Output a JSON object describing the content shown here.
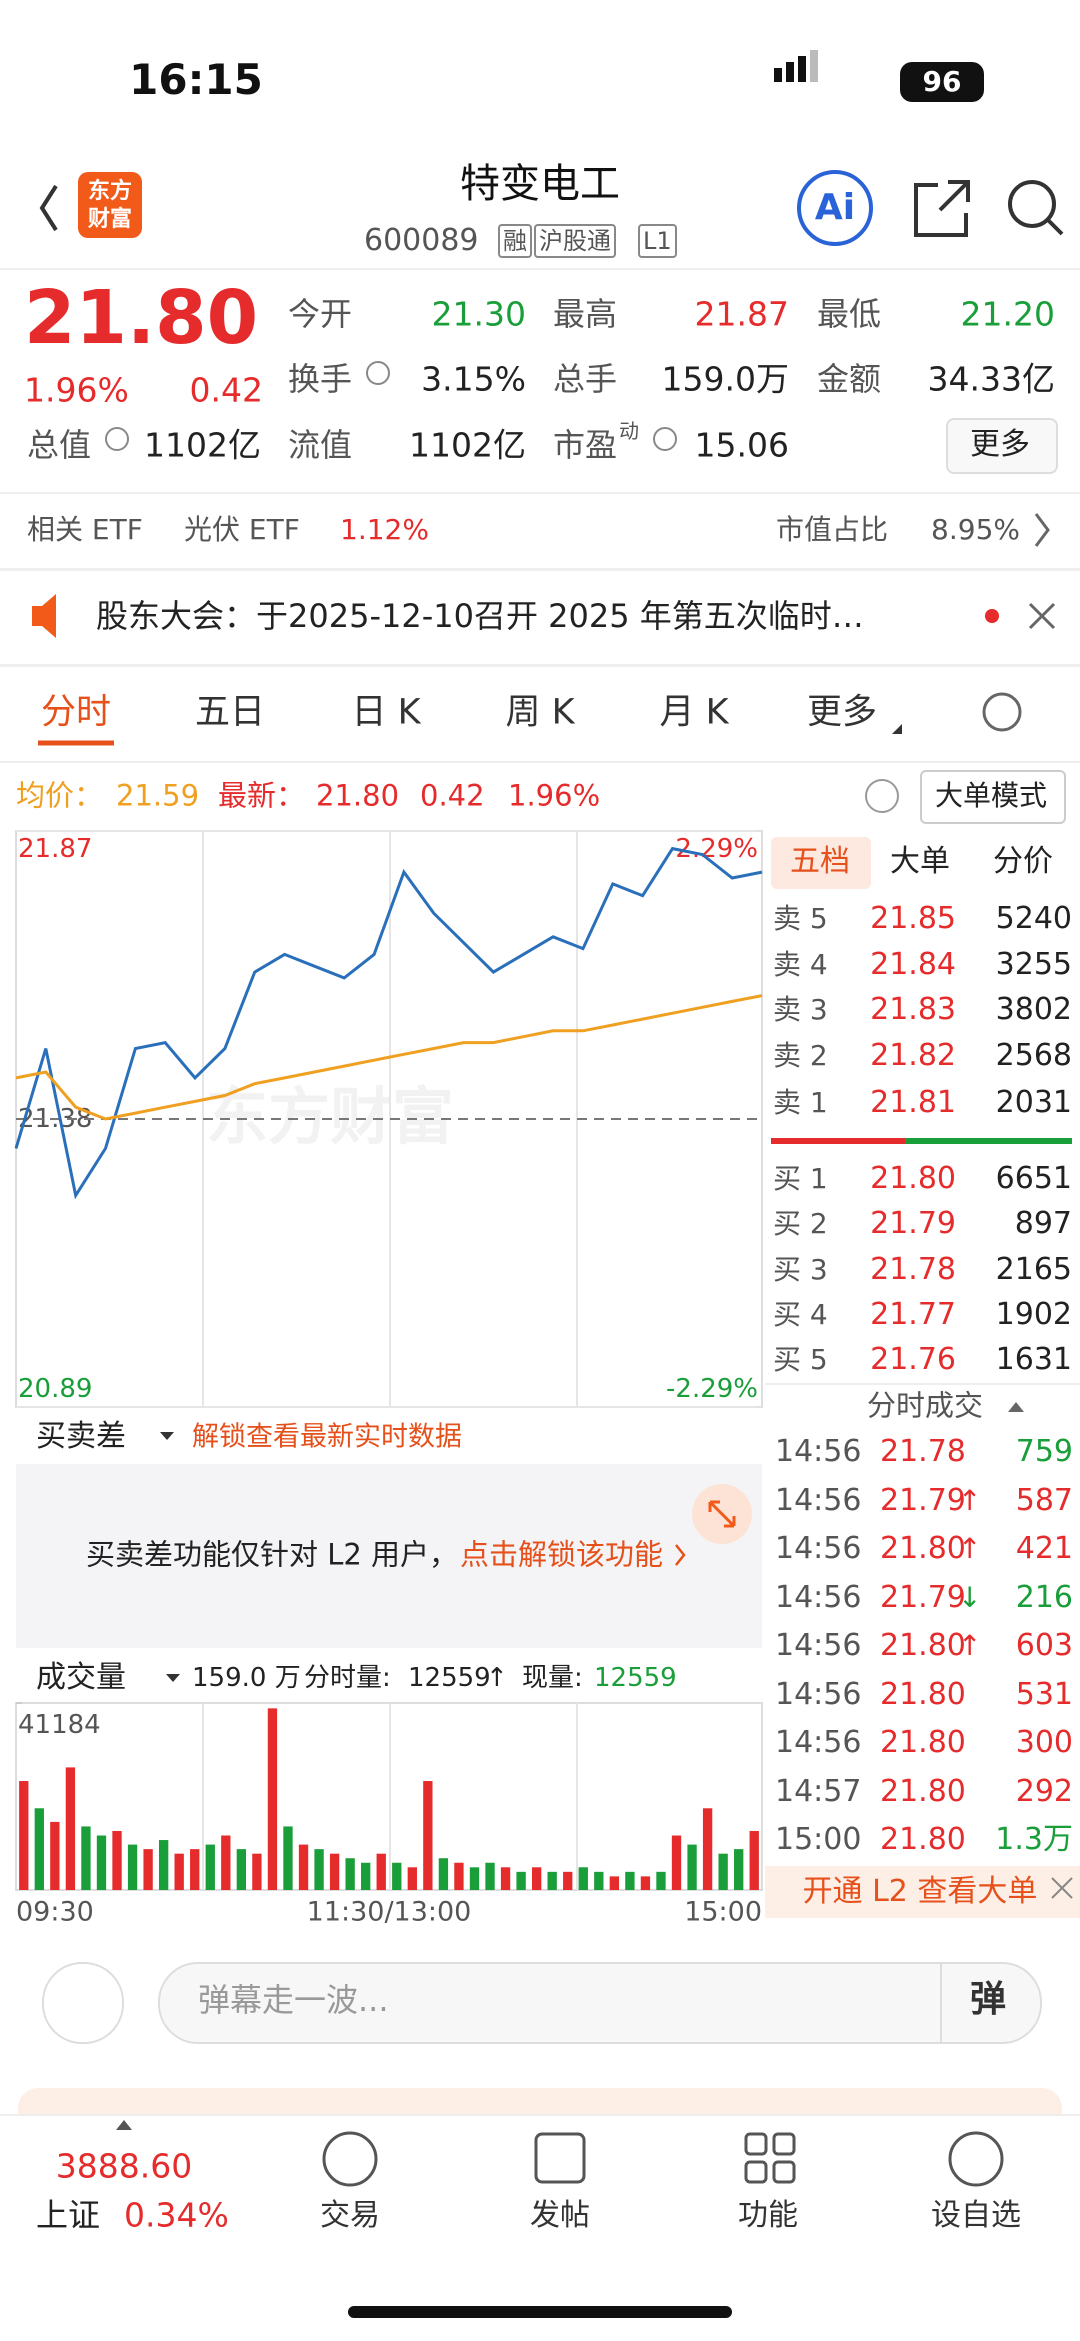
{
  "status": {
    "time": "16:15",
    "battery": "96"
  },
  "header": {
    "logo_top": "东方",
    "logo_bottom": "财富",
    "title": "特变电工",
    "code": "600089",
    "badges": [
      "融",
      "沪股通",
      "L1"
    ],
    "ai": "Ai"
  },
  "quote": {
    "price": "21.80",
    "change_pct": "1.96%",
    "change": "0.42",
    "fields": [
      {
        "label": "今开",
        "value": "21.30"
      },
      {
        "label": "最高",
        "value": "21.87"
      },
      {
        "label": "最低",
        "value": "21.20"
      },
      {
        "label": "换手",
        "value": "3.15%"
      },
      {
        "label": "总手",
        "value": "159.0万"
      },
      {
        "label": "金额",
        "value": "34.33亿"
      },
      {
        "label": "总值",
        "value": "1102亿"
      },
      {
        "label": "流值",
        "value": "1102亿"
      },
      {
        "label": "市盈",
        "sup": "动",
        "value": "15.06"
      }
    ],
    "more": "更多"
  },
  "etf": {
    "label": "相关 ETF",
    "name": "光伏 ETF",
    "pct": "1.12%",
    "share_label": "市值占比",
    "share": "8.95%"
  },
  "notice": {
    "text": "股东大会：于2025-12-10召开 2025 年第五次临时…"
  },
  "tabs": [
    "分时",
    "五日",
    "日 K",
    "周 K",
    "月 K",
    "更多"
  ],
  "info": {
    "avg_label": "均价：",
    "avg": "21.59",
    "last_label": "最新：",
    "last": "21.80",
    "change": "0.42",
    "pct": "1.96%",
    "mode": "大单模式"
  },
  "chart_data": [
    {
      "type": "line",
      "ylim": [
        20.89,
        21.87
      ],
      "yticks": [
        20.89,
        21.38,
        21.87
      ],
      "y2lim": [
        -2.29,
        2.29
      ],
      "y2ticks": [
        {
          "value": -2.29,
          "label": "-2.29%"
        },
        {
          "value": 2.29,
          "label": "2.29%"
        }
      ],
      "watermark": "东方财富",
      "series": [
        {
          "color": "#2a6fba",
          "values": [
            21.33,
            21.5,
            21.25,
            21.33,
            21.5,
            21.51,
            21.45,
            21.5,
            21.63,
            21.66,
            21.64,
            21.62,
            21.66,
            21.8,
            21.73,
            21.68,
            21.63,
            21.66,
            21.69,
            21.67,
            21.78,
            21.76,
            21.84,
            21.83,
            21.79,
            21.8
          ]
        },
        {
          "color": "#f0a020",
          "values": [
            21.45,
            21.46,
            21.4,
            21.38,
            21.39,
            21.4,
            21.41,
            21.42,
            21.44,
            21.45,
            21.46,
            21.47,
            21.48,
            21.49,
            21.5,
            21.51,
            21.51,
            21.52,
            21.53,
            21.53,
            21.54,
            21.55,
            21.56,
            21.57,
            21.58,
            21.59
          ]
        }
      ]
    },
    {
      "type": "bar",
      "ylim": [
        0,
        41184
      ],
      "yticks": [
        41184
      ],
      "xtick_labels": [
        "09:30",
        "11:30/13:00",
        "15:00"
      ],
      "values": [
        24000,
        18000,
        15000,
        27000,
        14000,
        12000,
        13000,
        10000,
        9000,
        11000,
        8000,
        9000,
        10000,
        12000,
        9000,
        8000,
        40000,
        14000,
        10000,
        9000,
        8000,
        7000,
        6000,
        8000,
        6000,
        5000,
        24000,
        7000,
        6000,
        5000,
        6000,
        5000,
        4000,
        5000,
        4000,
        4000,
        5000,
        4000,
        3000,
        4000,
        3000,
        4000,
        12000,
        10000,
        18000,
        8000,
        9000,
        13000
      ],
      "colors": [
        "#e52b2b",
        "#1a9e3a",
        "#e52b2b",
        "#e52b2b",
        "#1a9e3a",
        "#1a9e3a",
        "#e52b2b",
        "#1a9e3a",
        "#e52b2b",
        "#1a9e3a",
        "#e52b2b",
        "#e52b2b",
        "#1a9e3a",
        "#e52b2b",
        "#1a9e3a",
        "#e52b2b",
        "#e52b2b",
        "#1a9e3a",
        "#e52b2b",
        "#1a9e3a",
        "#e52b2b",
        "#1a9e3a",
        "#1a9e3a",
        "#e52b2b",
        "#1a9e3a",
        "#e52b2b",
        "#e52b2b",
        "#1a9e3a",
        "#e52b2b",
        "#1a9e3a",
        "#1a9e3a",
        "#e52b2b",
        "#1a9e3a",
        "#e52b2b",
        "#1a9e3a",
        "#e52b2b",
        "#1a9e3a",
        "#1a9e3a",
        "#e52b2b",
        "#1a9e3a",
        "#e52b2b",
        "#1a9e3a",
        "#e52b2b",
        "#1a9e3a",
        "#e52b2b",
        "#1a9e3a",
        "#1a9e3a",
        "#e52b2b"
      ]
    }
  ],
  "diff": {
    "select": "买卖差",
    "unlock": "解锁查看最新实时数据",
    "notice": "买卖差功能仅针对 L2 用户，",
    "link": "点击解锁该功能"
  },
  "volume_header": {
    "select": "成交量",
    "total": "159.0 万",
    "period_label": "分时量:",
    "period": "12559",
    "arrow": "↑",
    "now_label": "现量:",
    "now": "12559"
  },
  "order_book": {
    "tabs": [
      "五档",
      "大单",
      "分价"
    ],
    "asks": [
      {
        "label": "卖 5",
        "price": "21.85",
        "volume": "5240"
      },
      {
        "label": "卖 4",
        "price": "21.84",
        "volume": "3255"
      },
      {
        "label": "卖 3",
        "price": "21.83",
        "volume": "3802"
      },
      {
        "label": "卖 2",
        "price": "21.82",
        "volume": "2568"
      },
      {
        "label": "卖 1",
        "price": "21.81",
        "volume": "2031"
      }
    ],
    "bids": [
      {
        "label": "买 1",
        "price": "21.80",
        "volume": "6651"
      },
      {
        "label": "买 2",
        "price": "21.79",
        "volume": "897"
      },
      {
        "label": "买 3",
        "price": "21.78",
        "volume": "2165"
      },
      {
        "label": "买 4",
        "price": "21.77",
        "volume": "1902"
      },
      {
        "label": "买 5",
        "price": "21.76",
        "volume": "1631"
      }
    ]
  },
  "trades": {
    "title": "分时成交",
    "rows": [
      {
        "time": "14:56",
        "price": "21.78",
        "volume": "759"
      },
      {
        "time": "14:56",
        "price": "21.79",
        "dir": "↑",
        "volume": "587"
      },
      {
        "time": "14:56",
        "price": "21.80",
        "dir": "↑",
        "volume": "421"
      },
      {
        "time": "14:56",
        "price": "21.79",
        "dir": "↓",
        "volume": "216"
      },
      {
        "time": "14:56",
        "price": "21.80",
        "dir": "↑",
        "volume": "603"
      },
      {
        "time": "14:56",
        "price": "21.80",
        "volume": "531"
      },
      {
        "time": "14:56",
        "price": "21.80",
        "volume": "300"
      },
      {
        "time": "14:57",
        "price": "21.80",
        "volume": "292"
      },
      {
        "time": "15:00",
        "price": "21.80",
        "volume": "1.3万"
      }
    ],
    "banner": "开通 L2 查看大单"
  },
  "comment": {
    "placeholder": "弹幕走一波...",
    "button": "弹"
  },
  "nav": {
    "index": "3888.60",
    "index_name": "上证",
    "index_pct": "0.34%",
    "items": [
      "交易",
      "发帖",
      "功能",
      "设自选"
    ]
  }
}
